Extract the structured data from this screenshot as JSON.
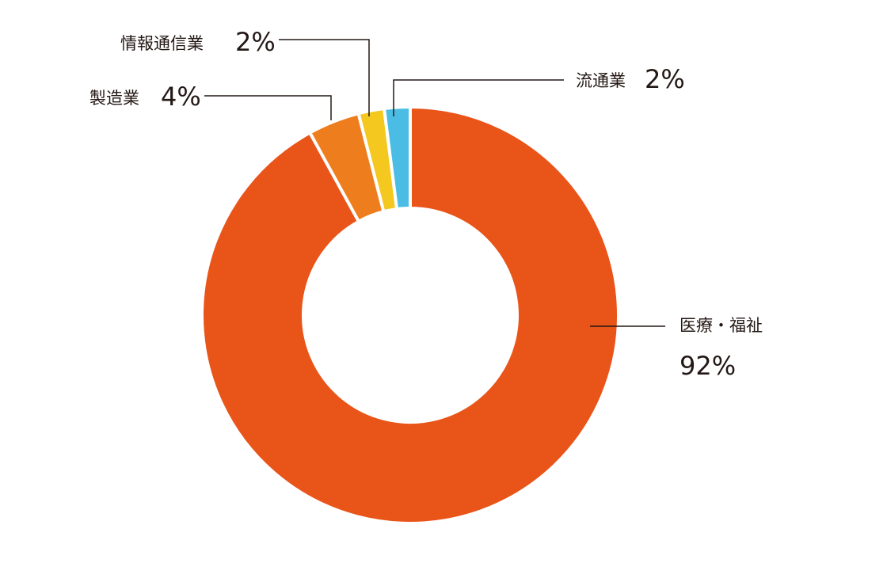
{
  "chart_data": {
    "type": "donut",
    "categories": [
      "医療・福祉",
      "製造業",
      "情報通信業",
      "流通業"
    ],
    "values": [
      92,
      4,
      2,
      2
    ],
    "value_labels": [
      "92%",
      "4%",
      "2%",
      "2%"
    ],
    "colors": [
      "#e95419",
      "#ee7d1e",
      "#f4c81f",
      "#4bbde5"
    ]
  }
}
